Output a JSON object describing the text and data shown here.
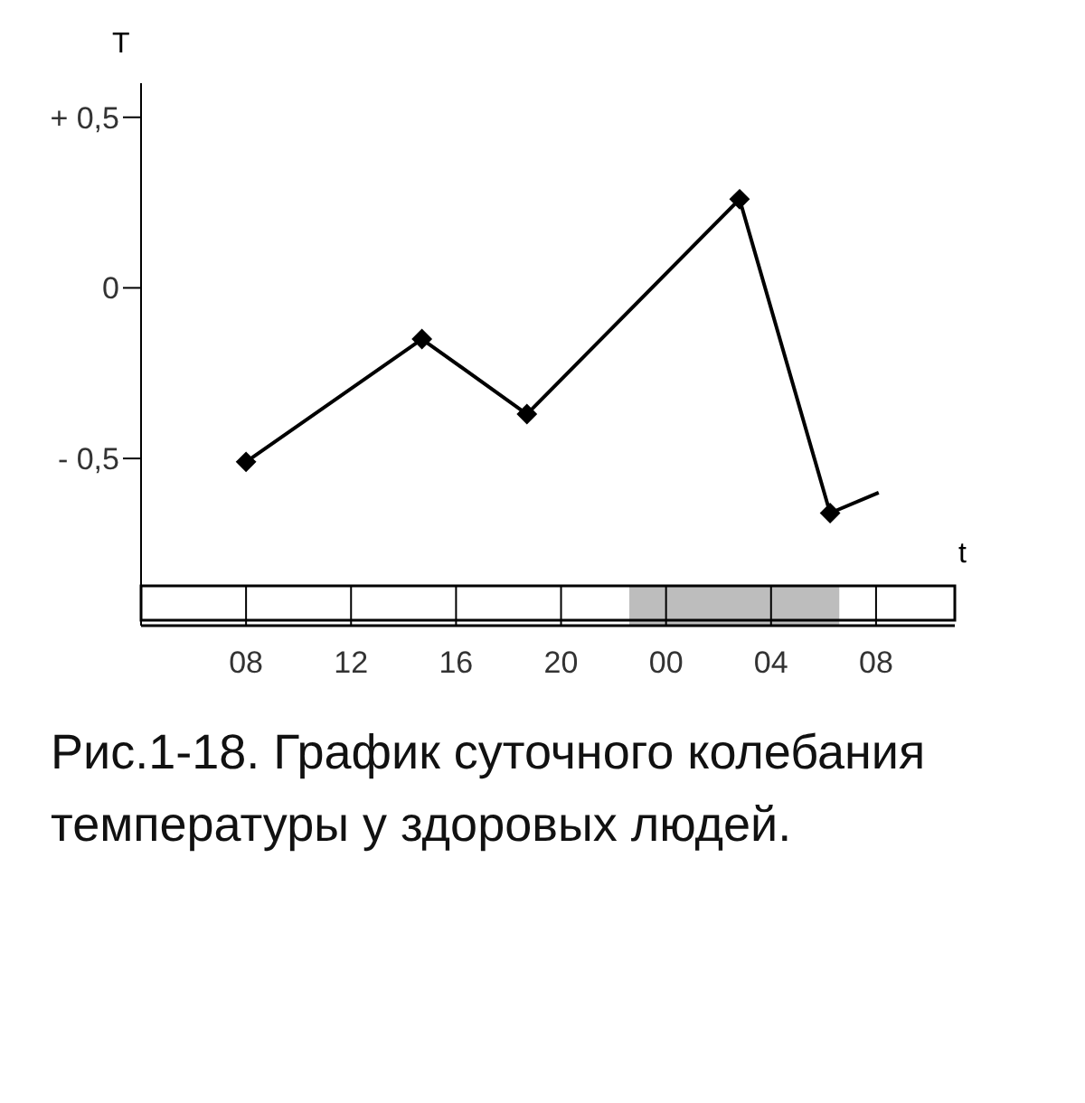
{
  "chart_data": {
    "type": "line",
    "title": "Рис.1-18. График суточного колебания температуры у здоровых людей.",
    "xlabel": "t",
    "ylabel": "T",
    "xlim": [
      4,
      35
    ],
    "xticks": [
      {
        "value": 8,
        "label": "08"
      },
      {
        "value": 12,
        "label": "12"
      },
      {
        "value": 16,
        "label": "16"
      },
      {
        "value": 20,
        "label": "20"
      },
      {
        "value": 24,
        "label": "00"
      },
      {
        "value": 28,
        "label": "04"
      },
      {
        "value": 32,
        "label": "08"
      }
    ],
    "ylim": [
      -0.99,
      0.6
    ],
    "yticks": [
      {
        "value": 0.5,
        "label": "+ 0,5"
      },
      {
        "value": 0,
        "label": "0"
      },
      {
        "value": -0.5,
        "label": "- 0,5"
      }
    ],
    "series": [
      {
        "color": "#000000",
        "marker": "diamond",
        "x": [
          8,
          14.7,
          18.7,
          26.8,
          30.25
        ],
        "values": [
          -0.51,
          -0.15,
          -0.37,
          0.26,
          -0.66
        ]
      },
      {
        "color": "#000000",
        "marker": "none",
        "x": [
          30.25,
          32.1
        ],
        "values": [
          -0.66,
          -0.6
        ]
      }
    ],
    "bands": [
      {
        "axis": "x",
        "from": 22.6,
        "to": 30.6,
        "color": "#bdbdbd"
      }
    ],
    "grid": false,
    "legend": false
  }
}
